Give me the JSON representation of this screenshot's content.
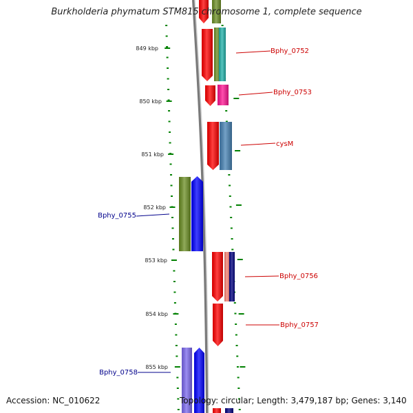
{
  "title": "Burkholderia phymatum STM815 chromosome 1, complete sequence",
  "ruler_labels": [
    "849 kbp",
    "850 kbp",
    "851 kbp",
    "852 kbp",
    "853 kbp",
    "854 kbp",
    "855 kbp"
  ],
  "genes": [
    {
      "label": "Bphy_0752",
      "strand": "forward",
      "color": "#cc0000"
    },
    {
      "label": "Bphy_0753",
      "strand": "forward",
      "color": "#cc0000"
    },
    {
      "label": "cysM",
      "strand": "forward",
      "color": "#cc0000"
    },
    {
      "label": "Bphy_0755",
      "strand": "reverse",
      "color": "#00008b"
    },
    {
      "label": "Bphy_0756",
      "strand": "forward",
      "color": "#cc0000"
    },
    {
      "label": "Bphy_0757",
      "strand": "forward",
      "color": "#cc0000"
    },
    {
      "label": "Bphy_0758",
      "strand": "reverse",
      "color": "#00008b"
    }
  ],
  "feature_colors": {
    "forward_cds": "#ff0000",
    "reverse_cds": "#0000ff",
    "olive_feature": "#6b8e23",
    "teal_feature": "#20b2aa",
    "magenta_feature": "#ff1493",
    "steelblue_feature": "#4682b4",
    "salmon_feature": "#fa8072",
    "navy_feature": "#000080",
    "lavender_feature": "#7b68ee",
    "tick_color": "#008000",
    "backbone_color": "#808080"
  },
  "footer": {
    "accession": "Accession: NC_010622",
    "topology": "Topology: circular; Length: 3,479,187 bp; Genes: 3,140"
  }
}
